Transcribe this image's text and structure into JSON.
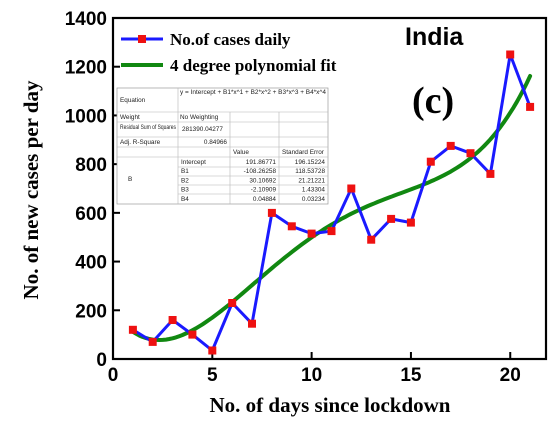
{
  "chart_data": {
    "type": "line",
    "title": "",
    "annotation_region": "India",
    "annotation_panel": "(c)",
    "xlabel": "No. of days since lockdown",
    "ylabel": "No. of new cases per day",
    "xlim": [
      0,
      21.8
    ],
    "ylim": [
      0,
      1400
    ],
    "x_ticks": [
      0,
      5,
      10,
      15,
      20
    ],
    "y_ticks": [
      0,
      200,
      400,
      600,
      800,
      1000,
      1200,
      1400
    ],
    "grid": false,
    "legend_position": "top-left",
    "colors": {
      "observed": "#1a1aff",
      "marker": "#ee1111",
      "fit": "#118811"
    },
    "series": [
      {
        "name": "No.of cases daily",
        "style": "line-markers",
        "x": [
          1,
          2,
          3,
          4,
          5,
          6,
          7,
          8,
          9,
          10,
          11,
          12,
          13,
          14,
          15,
          16,
          17,
          18,
          19,
          20,
          21
        ],
        "values": [
          120,
          70,
          160,
          100,
          35,
          230,
          145,
          600,
          545,
          515,
          525,
          700,
          490,
          575,
          560,
          810,
          875,
          845,
          760,
          1250,
          1035
        ]
      },
      {
        "name": "4 degree polynomial fit",
        "style": "line",
        "coefficients": [
          191.86771,
          -108.26258,
          30.10692,
          -2.10909,
          0.04884
        ],
        "x_range": [
          1,
          21
        ]
      }
    ],
    "fit_table": {
      "equation_label": "Equation",
      "equation": "y = Intercept + B1*x^1 + B2*x^2 + B3*x^3 + B4*x^4",
      "weight_label": "Weight",
      "weight": "No Weighting",
      "rss_label": "Residual Sum of Squares",
      "rss": "281390.04277",
      "r2_label": "Adj. R-Square",
      "r2": "0.84966",
      "value_header": "Value",
      "se_header": "Standard Error",
      "group_label": "B",
      "params": [
        {
          "name": "Intercept",
          "value": "191.86771",
          "se": "196.15224"
        },
        {
          "name": "B1",
          "value": "-108.26258",
          "se": "118.53728"
        },
        {
          "name": "B2",
          "value": "30.10692",
          "se": "21.21221"
        },
        {
          "name": "B3",
          "value": "-2.10909",
          "se": "1.43304"
        },
        {
          "name": "B4",
          "value": "0.04884",
          "se": "0.03234"
        }
      ]
    }
  }
}
